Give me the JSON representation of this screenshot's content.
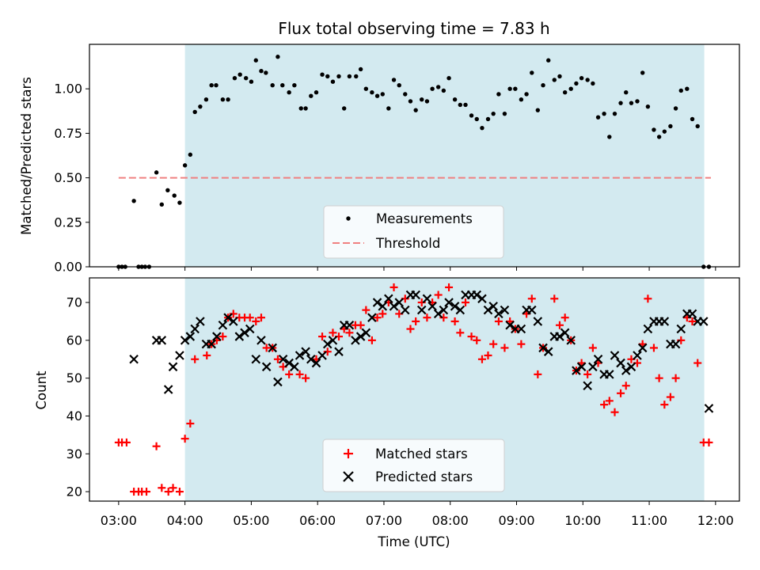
{
  "chart_data": {
    "title": "Flux total observing time = 7.83 h",
    "xlabel": "Time (UTC)",
    "x_ticks": [
      "03:00",
      "04:00",
      "05:00",
      "06:00",
      "07:00",
      "08:00",
      "09:00",
      "10:00",
      "11:00",
      "12:00"
    ],
    "xlim_hours": [
      2.56,
      12.36
    ],
    "observing_window_hours": [
      4.0,
      11.83
    ],
    "shade_color": "#d3eaf0",
    "panels": [
      {
        "type": "scatter",
        "ylabel": "Matched/Predicted stars",
        "ylim": [
          0,
          1.25
        ],
        "yticks": [
          "0.00",
          "0.25",
          "0.50",
          "0.75",
          "1.00"
        ],
        "legend_position": "lower-center",
        "series": [
          {
            "name": "Measurements",
            "marker": "dot",
            "color": "#000000",
            "x": [
              3.0,
              3.05,
              3.1,
              3.23,
              3.3,
              3.35,
              3.4,
              3.46,
              3.57,
              3.65,
              3.74,
              3.84,
              3.92,
              4.0,
              4.08,
              4.15,
              4.23,
              4.32,
              4.4,
              4.47,
              4.57,
              4.65,
              4.75,
              4.83,
              4.92,
              5.0,
              5.07,
              5.15,
              5.22,
              5.32,
              5.4,
              5.47,
              5.57,
              5.65,
              5.75,
              5.82,
              5.9,
              5.98,
              6.07,
              6.15,
              6.23,
              6.32,
              6.4,
              6.48,
              6.58,
              6.65,
              6.73,
              6.82,
              6.9,
              6.98,
              7.07,
              7.15,
              7.23,
              7.32,
              7.4,
              7.48,
              7.57,
              7.65,
              7.73,
              7.82,
              7.9,
              7.98,
              8.07,
              8.15,
              8.23,
              8.32,
              8.4,
              8.48,
              8.57,
              8.65,
              8.73,
              8.82,
              8.9,
              8.98,
              9.07,
              9.15,
              9.23,
              9.32,
              9.4,
              9.48,
              9.57,
              9.65,
              9.73,
              9.82,
              9.9,
              9.98,
              10.07,
              10.15,
              10.23,
              10.32,
              10.4,
              10.48,
              10.57,
              10.65,
              10.73,
              10.82,
              10.9,
              10.98,
              11.07,
              11.15,
              11.23,
              11.32,
              11.4,
              11.48,
              11.57,
              11.65,
              11.73,
              11.82,
              11.9
            ],
            "y": [
              0.0,
              0.0,
              0.0,
              0.37,
              0.0,
              0.0,
              0.0,
              0.0,
              0.53,
              0.35,
              0.43,
              0.4,
              0.36,
              0.57,
              0.63,
              0.87,
              0.9,
              0.94,
              1.02,
              1.02,
              0.94,
              0.94,
              1.06,
              1.08,
              1.06,
              1.04,
              1.16,
              1.1,
              1.09,
              1.02,
              1.18,
              1.02,
              0.98,
              1.02,
              0.89,
              0.89,
              0.96,
              0.98,
              1.08,
              1.07,
              1.04,
              1.07,
              0.89,
              1.07,
              1.07,
              1.11,
              1.0,
              0.98,
              0.96,
              0.97,
              0.89,
              1.05,
              1.02,
              0.97,
              0.93,
              0.88,
              0.94,
              0.93,
              1.0,
              1.01,
              0.99,
              1.06,
              0.94,
              0.91,
              0.91,
              0.85,
              0.83,
              0.78,
              0.83,
              0.86,
              0.97,
              0.86,
              1.0,
              1.0,
              0.94,
              0.97,
              1.09,
              0.88,
              1.02,
              1.16,
              1.05,
              1.07,
              0.98,
              1.0,
              1.03,
              1.06,
              1.05,
              1.03,
              0.84,
              0.86,
              0.73,
              0.86,
              0.92,
              0.98,
              0.92,
              0.93,
              1.09,
              0.9,
              0.77,
              0.73,
              0.76,
              0.79,
              0.89,
              0.99,
              1.0,
              0.83,
              0.79,
              0.0,
              0.0
            ]
          },
          {
            "name": "Threshold",
            "style": "dashed-line",
            "color": "#f08080",
            "x": [
              3.0,
              11.93
            ],
            "y": [
              0.5,
              0.5
            ]
          }
        ]
      },
      {
        "type": "scatter",
        "ylabel": "Count",
        "ylim": [
          17.5,
          76.5
        ],
        "yticks": [
          "20",
          "30",
          "40",
          "50",
          "60",
          "70"
        ],
        "legend_position": "lower-center",
        "series": [
          {
            "name": "Matched stars",
            "marker": "plus",
            "color": "#ff0000",
            "x": [
              3.0,
              3.05,
              3.12,
              3.23,
              3.3,
              3.35,
              3.42,
              3.57,
              3.65,
              3.75,
              3.82,
              3.92,
              4.0,
              4.08,
              4.15,
              4.33,
              4.4,
              4.48,
              4.57,
              4.65,
              4.73,
              4.82,
              4.9,
              4.98,
              5.07,
              5.15,
              5.23,
              5.32,
              5.4,
              5.48,
              5.57,
              5.73,
              5.82,
              5.98,
              6.07,
              6.15,
              6.23,
              6.32,
              6.4,
              6.48,
              6.57,
              6.65,
              6.73,
              6.82,
              6.9,
              6.98,
              7.07,
              7.15,
              7.23,
              7.32,
              7.4,
              7.48,
              7.57,
              7.65,
              7.73,
              7.82,
              7.9,
              7.98,
              8.07,
              8.15,
              8.23,
              8.32,
              8.4,
              8.48,
              8.57,
              8.65,
              8.73,
              8.82,
              8.9,
              8.98,
              9.07,
              9.15,
              9.23,
              9.32,
              9.4,
              9.57,
              9.65,
              9.73,
              9.82,
              9.9,
              9.98,
              10.07,
              10.15,
              10.23,
              10.32,
              10.4,
              10.48,
              10.57,
              10.65,
              10.73,
              10.82,
              10.9,
              10.98,
              11.07,
              11.15,
              11.23,
              11.32,
              11.4,
              11.48,
              11.57,
              11.65,
              11.73,
              11.82,
              11.9
            ],
            "y": [
              33,
              33,
              33,
              20,
              20,
              20,
              20,
              32,
              21,
              20,
              21,
              20,
              34,
              38,
              55,
              56,
              59,
              60,
              61,
              66,
              67,
              66,
              66,
              66,
              65,
              66,
              58,
              58,
              55,
              53,
              51,
              51,
              50,
              55,
              61,
              57,
              62,
              61,
              63,
              62,
              64,
              64,
              68,
              60,
              66,
              67,
              70,
              74,
              67,
              71,
              63,
              65,
              70,
              66,
              70,
              72,
              66,
              74,
              65,
              62,
              70,
              61,
              60,
              55,
              56,
              59,
              65,
              58,
              65,
              63,
              59,
              67,
              71,
              51,
              58,
              71,
              64,
              66,
              60,
              52,
              54,
              51,
              58,
              54,
              43,
              44,
              41,
              46,
              48,
              55,
              54,
              59,
              71,
              58,
              50,
              43,
              45,
              50,
              60,
              66,
              65,
              54,
              33,
              33
            ]
          },
          {
            "name": "Predicted stars",
            "marker": "x",
            "color": "#000000",
            "x": [
              3.23,
              3.57,
              3.65,
              3.75,
              3.82,
              3.92,
              4.0,
              4.08,
              4.15,
              4.23,
              4.32,
              4.4,
              4.48,
              4.57,
              4.65,
              4.73,
              4.82,
              4.9,
              4.98,
              5.07,
              5.15,
              5.23,
              5.32,
              5.4,
              5.48,
              5.57,
              5.65,
              5.73,
              5.82,
              5.9,
              5.98,
              6.07,
              6.15,
              6.23,
              6.32,
              6.4,
              6.48,
              6.57,
              6.65,
              6.73,
              6.82,
              6.9,
              6.98,
              7.07,
              7.15,
              7.23,
              7.32,
              7.4,
              7.48,
              7.57,
              7.65,
              7.73,
              7.82,
              7.9,
              7.98,
              8.07,
              8.15,
              8.23,
              8.32,
              8.4,
              8.48,
              8.57,
              8.65,
              8.73,
              8.82,
              8.9,
              8.98,
              9.07,
              9.15,
              9.23,
              9.32,
              9.4,
              9.48,
              9.57,
              9.65,
              9.73,
              9.82,
              9.9,
              9.98,
              10.07,
              10.15,
              10.23,
              10.32,
              10.4,
              10.48,
              10.57,
              10.65,
              10.73,
              10.82,
              10.9,
              10.98,
              11.07,
              11.15,
              11.23,
              11.32,
              11.4,
              11.48,
              11.57,
              11.65,
              11.73,
              11.82,
              11.9
            ],
            "y": [
              55,
              60,
              60,
              47,
              53,
              56,
              60,
              61,
              63,
              65,
              59,
              59,
              61,
              64,
              66,
              65,
              61,
              62,
              63,
              55,
              60,
              53,
              58,
              49,
              55,
              54,
              53,
              56,
              57,
              55,
              54,
              56,
              59,
              60,
              57,
              64,
              64,
              60,
              61,
              62,
              66,
              70,
              69,
              71,
              69,
              70,
              68,
              72,
              72,
              68,
              71,
              69,
              67,
              68,
              70,
              69,
              68,
              72,
              72,
              72,
              71,
              68,
              69,
              67,
              68,
              64,
              63,
              63,
              68,
              68,
              65,
              58,
              57,
              61,
              61,
              62,
              60,
              52,
              53,
              48,
              53,
              55,
              51,
              51,
              56,
              54,
              52,
              53,
              56,
              58,
              63,
              65,
              65,
              65,
              59,
              59,
              63,
              67,
              67,
              65,
              65,
              42
            ]
          }
        ]
      }
    ]
  }
}
